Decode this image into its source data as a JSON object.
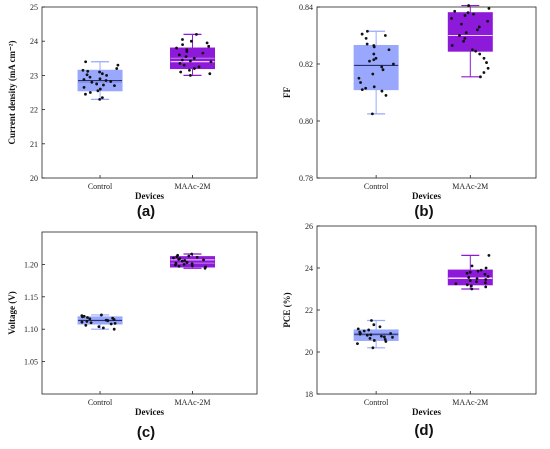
{
  "chart_data": [
    {
      "type": "box",
      "panel_label": "(a)",
      "xlabel": "Devices",
      "ylabel": "Current density (mA cm⁻²)",
      "ylim": [
        20,
        25
      ],
      "yticks": [
        "20",
        "21",
        "22",
        "23",
        "24",
        "25"
      ],
      "categories": [
        "Control",
        "MAAc-2M"
      ],
      "colors": [
        "#99a8fc",
        "#8c1ad8"
      ],
      "boxes": [
        {
          "name": "Control",
          "q1": 22.55,
          "median": 22.85,
          "mean": 22.8,
          "q3": 23.15,
          "whisker_low": 22.3,
          "whisker_high": 23.4,
          "points": [
            22.3,
            22.35,
            22.45,
            22.5,
            22.55,
            22.6,
            22.65,
            22.7,
            22.72,
            22.75,
            22.8,
            22.82,
            22.85,
            22.88,
            22.9,
            22.95,
            23.0,
            23.02,
            23.05,
            23.1,
            23.12,
            23.15,
            23.2,
            23.3,
            23.4
          ]
        },
        {
          "name": "MAAc-2M",
          "q1": 23.2,
          "median": 23.4,
          "mean": 23.5,
          "q3": 23.8,
          "whisker_low": 23.0,
          "whisker_high": 24.2,
          "points": [
            23.0,
            23.05,
            23.1,
            23.15,
            23.2,
            23.25,
            23.3,
            23.35,
            23.4,
            23.42,
            23.45,
            23.5,
            23.55,
            23.6,
            23.65,
            23.7,
            23.75,
            23.8,
            23.85,
            23.9,
            23.95,
            24.0,
            24.05,
            24.2
          ]
        }
      ]
    },
    {
      "type": "box",
      "panel_label": "(b)",
      "xlabel": "Devices",
      "ylabel": "FF",
      "ylim": [
        0.78,
        0.84
      ],
      "yticks": [
        "0.78",
        "0.80",
        "0.82",
        "0.84"
      ],
      "categories": [
        "Control",
        "MAAc-2M"
      ],
      "colors": [
        "#99a8fc",
        "#8c1ad8"
      ],
      "boxes": [
        {
          "name": "Control",
          "q1": 0.811,
          "median": 0.8195,
          "mean": 0.8195,
          "q3": 0.8265,
          "whisker_low": 0.8025,
          "whisker_high": 0.8315,
          "points": [
            0.8025,
            0.809,
            0.8105,
            0.811,
            0.8115,
            0.812,
            0.8135,
            0.815,
            0.8165,
            0.818,
            0.819,
            0.82,
            0.821,
            0.8215,
            0.822,
            0.8235,
            0.825,
            0.826,
            0.8265,
            0.827,
            0.829,
            0.83,
            0.8305,
            0.8315
          ]
        },
        {
          "name": "MAAc-2M",
          "q1": 0.8245,
          "median": 0.83,
          "mean": 0.83,
          "q3": 0.838,
          "whisker_low": 0.8155,
          "whisker_high": 0.8405,
          "points": [
            0.8155,
            0.817,
            0.8185,
            0.8205,
            0.822,
            0.8235,
            0.8245,
            0.825,
            0.8265,
            0.828,
            0.829,
            0.83,
            0.831,
            0.832,
            0.833,
            0.834,
            0.835,
            0.836,
            0.837,
            0.8375,
            0.838,
            0.8385,
            0.8395,
            0.8405
          ]
        }
      ]
    },
    {
      "type": "box",
      "panel_label": "(c)",
      "xlabel": "Devices",
      "ylabel": "Voltage (V)",
      "ylim": [
        1.0,
        1.25
      ],
      "yticks": [
        "1.05",
        "1.10",
        "1.15",
        "1.20"
      ],
      "categories": [
        "Control",
        "MAAc-2M"
      ],
      "colors": [
        "#99a8fc",
        "#8c1ad8"
      ],
      "boxes": [
        {
          "name": "Control",
          "q1": 1.108,
          "median": 1.1135,
          "mean": 1.113,
          "q3": 1.119,
          "whisker_low": 1.1,
          "whisker_high": 1.122,
          "points": [
            1.1,
            1.102,
            1.104,
            1.106,
            1.108,
            1.109,
            1.11,
            1.111,
            1.112,
            1.113,
            1.1135,
            1.114,
            1.115,
            1.116,
            1.117,
            1.118,
            1.119,
            1.12,
            1.121,
            1.122
          ]
        },
        {
          "name": "MAAc-2M",
          "q1": 1.196,
          "median": 1.207,
          "mean": 1.202,
          "q3": 1.212,
          "whisker_low": 1.194,
          "whisker_high": 1.216,
          "points": [
            1.194,
            1.196,
            1.197,
            1.198,
            1.199,
            1.2,
            1.201,
            1.202,
            1.203,
            1.205,
            1.206,
            1.207,
            1.208,
            1.209,
            1.21,
            1.211,
            1.212,
            1.213,
            1.214,
            1.216
          ]
        }
      ]
    },
    {
      "type": "box",
      "panel_label": "(d)",
      "xlabel": "Devices",
      "ylabel": "PCE (%)",
      "ylim": [
        18,
        26
      ],
      "yticks": [
        "18",
        "20",
        "22",
        "24",
        "26"
      ],
      "categories": [
        "Control",
        "MAAc-2M"
      ],
      "colors": [
        "#99a8fc",
        "#8c1ad8"
      ],
      "boxes": [
        {
          "name": "Control",
          "q1": 20.55,
          "median": 20.85,
          "mean": 20.8,
          "q3": 21.05,
          "whisker_low": 20.2,
          "whisker_high": 21.5,
          "points": [
            20.2,
            20.4,
            20.5,
            20.55,
            20.6,
            20.65,
            20.7,
            20.72,
            20.75,
            20.8,
            20.82,
            20.85,
            20.88,
            20.9,
            20.95,
            21.0,
            21.05,
            21.1,
            21.2,
            21.3,
            21.5
          ]
        },
        {
          "name": "MAAc-2M",
          "q1": 23.2,
          "median": 23.5,
          "mean": 23.55,
          "q3": 23.9,
          "whisker_low": 23.0,
          "whisker_high": 24.6,
          "points": [
            23.0,
            23.1,
            23.15,
            23.2,
            23.25,
            23.3,
            23.35,
            23.4,
            23.45,
            23.5,
            23.55,
            23.6,
            23.7,
            23.75,
            23.8,
            23.85,
            23.9,
            24.0,
            24.1,
            24.6
          ]
        }
      ]
    }
  ]
}
